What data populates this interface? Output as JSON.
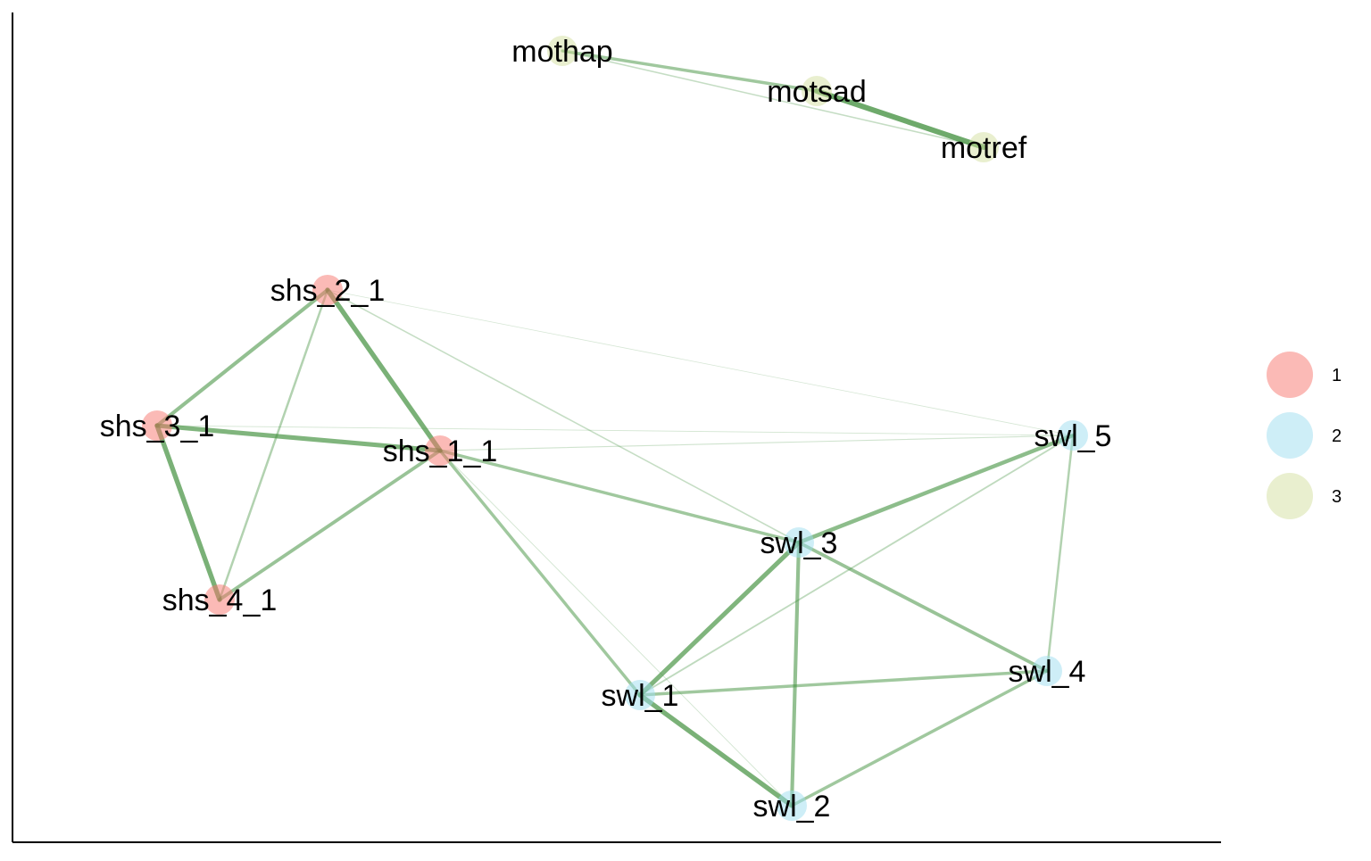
{
  "groups": [
    {
      "id": "1",
      "label": "1",
      "color": "#F8766D"
    },
    {
      "id": "2",
      "label": "2",
      "color": "#9DDDF0"
    },
    {
      "id": "3",
      "label": "3",
      "color": "#D4E0A0"
    }
  ],
  "edge_color": "#3E8E3A",
  "nodes": [
    {
      "id": "mothap",
      "label": "mothap",
      "group": "3"
    },
    {
      "id": "motsad",
      "label": "motsad",
      "group": "3"
    },
    {
      "id": "motref",
      "label": "motref",
      "group": "3"
    },
    {
      "id": "shs_2_1",
      "label": "shs_2_1",
      "group": "1"
    },
    {
      "id": "shs_3_1",
      "label": "shs_3_1",
      "group": "1"
    },
    {
      "id": "shs_1_1",
      "label": "shs_1_1",
      "group": "1"
    },
    {
      "id": "shs_4_1",
      "label": "shs_4_1",
      "group": "1"
    },
    {
      "id": "swl_5",
      "label": "swl_5",
      "group": "2"
    },
    {
      "id": "swl_3",
      "label": "swl_3",
      "group": "2"
    },
    {
      "id": "swl_4",
      "label": "swl_4",
      "group": "2"
    },
    {
      "id": "swl_1",
      "label": "swl_1",
      "group": "2"
    },
    {
      "id": "swl_2",
      "label": "swl_2",
      "group": "2"
    }
  ],
  "edges": [
    {
      "source": "mothap",
      "target": "motsad",
      "weight": 0.45
    },
    {
      "source": "mothap",
      "target": "motref",
      "weight": 0.15
    },
    {
      "source": "motsad",
      "target": "motref",
      "weight": 0.85
    },
    {
      "source": "shs_2_1",
      "target": "shs_1_1",
      "weight": 0.75
    },
    {
      "source": "shs_2_1",
      "target": "shs_3_1",
      "weight": 0.55
    },
    {
      "source": "shs_2_1",
      "target": "shs_4_1",
      "weight": 0.3
    },
    {
      "source": "shs_2_1",
      "target": "swl_3",
      "weight": 0.15
    },
    {
      "source": "shs_2_1",
      "target": "swl_5",
      "weight": 0.03
    },
    {
      "source": "shs_3_1",
      "target": "shs_1_1",
      "weight": 0.7
    },
    {
      "source": "shs_3_1",
      "target": "shs_4_1",
      "weight": 0.75
    },
    {
      "source": "shs_3_1",
      "target": "swl_5",
      "weight": 0.04
    },
    {
      "source": "shs_1_1",
      "target": "shs_4_1",
      "weight": 0.5
    },
    {
      "source": "shs_1_1",
      "target": "swl_3",
      "weight": 0.45
    },
    {
      "source": "shs_1_1",
      "target": "swl_1",
      "weight": 0.45
    },
    {
      "source": "shs_1_1",
      "target": "swl_5",
      "weight": 0.08
    },
    {
      "source": "shs_1_1",
      "target": "swl_2",
      "weight": 0.05
    },
    {
      "source": "swl_5",
      "target": "swl_3",
      "weight": 0.6
    },
    {
      "source": "swl_5",
      "target": "swl_4",
      "weight": 0.3
    },
    {
      "source": "swl_5",
      "target": "swl_1",
      "weight": 0.2
    },
    {
      "source": "swl_3",
      "target": "swl_1",
      "weight": 0.7
    },
    {
      "source": "swl_3",
      "target": "swl_2",
      "weight": 0.55
    },
    {
      "source": "swl_3",
      "target": "swl_4",
      "weight": 0.5
    },
    {
      "source": "swl_1",
      "target": "swl_4",
      "weight": 0.45
    },
    {
      "source": "swl_1",
      "target": "swl_2",
      "weight": 0.75
    },
    {
      "source": "swl_2",
      "target": "swl_4",
      "weight": 0.45
    }
  ]
}
